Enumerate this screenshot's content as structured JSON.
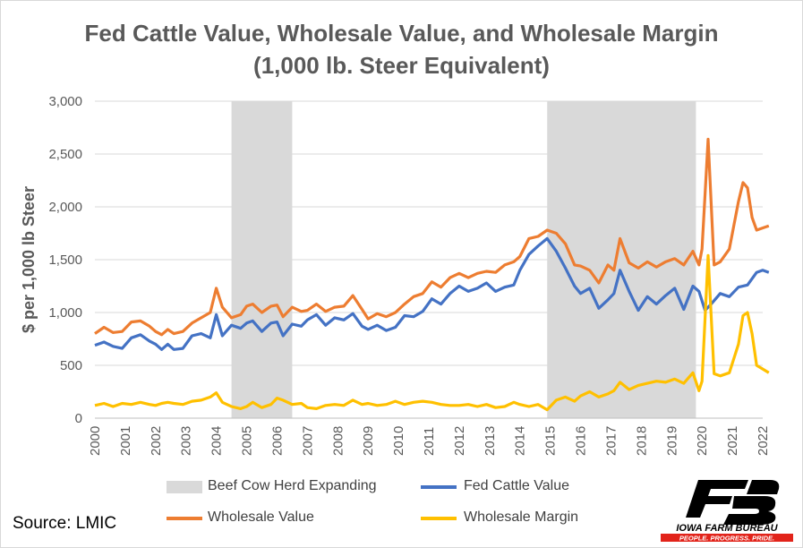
{
  "chart_data": {
    "type": "line",
    "title": "Fed Cattle Value, Wholesale Value, and Wholesale Margin",
    "subtitle": "(1,000 lb. Steer Equivalent)",
    "ylabel": "$ per 1,000 lb Steer",
    "xlabel": "",
    "ylim": [
      0,
      3000
    ],
    "xlim": [
      2000,
      2022
    ],
    "y_ticks": [
      "0",
      "500",
      "1,000",
      "1,500",
      "2,000",
      "2,500",
      "3,000"
    ],
    "x_ticks": [
      "2000",
      "2001",
      "2002",
      "2003",
      "2004",
      "2005",
      "2006",
      "2007",
      "2008",
      "2009",
      "2010",
      "2011",
      "2012",
      "2013",
      "2014",
      "2015",
      "2016",
      "2017",
      "2018",
      "2019",
      "2020",
      "2021",
      "2022"
    ],
    "grid": true,
    "legend_placement": "bottom",
    "shaded_periods": {
      "name": "Beef Cow Herd Expanding",
      "color": "#d9d9d9",
      "ranges": [
        [
          2004.5,
          2006.5
        ],
        [
          2014.9,
          2019.8
        ]
      ]
    },
    "series": [
      {
        "name": "Fed Cattle Value",
        "color": "#4472c4",
        "points": [
          [
            2000.0,
            690
          ],
          [
            2000.3,
            720
          ],
          [
            2000.6,
            680
          ],
          [
            2000.9,
            660
          ],
          [
            2001.2,
            760
          ],
          [
            2001.5,
            790
          ],
          [
            2001.8,
            730
          ],
          [
            2002.0,
            700
          ],
          [
            2002.2,
            650
          ],
          [
            2002.4,
            700
          ],
          [
            2002.6,
            650
          ],
          [
            2002.9,
            660
          ],
          [
            2003.2,
            780
          ],
          [
            2003.5,
            800
          ],
          [
            2003.8,
            760
          ],
          [
            2004.0,
            980
          ],
          [
            2004.2,
            780
          ],
          [
            2004.5,
            880
          ],
          [
            2004.8,
            850
          ],
          [
            2005.0,
            900
          ],
          [
            2005.2,
            920
          ],
          [
            2005.5,
            820
          ],
          [
            2005.8,
            900
          ],
          [
            2006.0,
            910
          ],
          [
            2006.2,
            780
          ],
          [
            2006.5,
            890
          ],
          [
            2006.8,
            870
          ],
          [
            2007.0,
            930
          ],
          [
            2007.3,
            980
          ],
          [
            2007.6,
            880
          ],
          [
            2007.9,
            950
          ],
          [
            2008.2,
            930
          ],
          [
            2008.5,
            990
          ],
          [
            2008.8,
            870
          ],
          [
            2009.0,
            840
          ],
          [
            2009.3,
            880
          ],
          [
            2009.6,
            830
          ],
          [
            2009.9,
            860
          ],
          [
            2010.2,
            970
          ],
          [
            2010.5,
            960
          ],
          [
            2010.8,
            1010
          ],
          [
            2011.1,
            1130
          ],
          [
            2011.4,
            1080
          ],
          [
            2011.7,
            1180
          ],
          [
            2012.0,
            1250
          ],
          [
            2012.3,
            1200
          ],
          [
            2012.6,
            1230
          ],
          [
            2012.9,
            1280
          ],
          [
            2013.2,
            1200
          ],
          [
            2013.5,
            1240
          ],
          [
            2013.8,
            1260
          ],
          [
            2014.0,
            1400
          ],
          [
            2014.3,
            1550
          ],
          [
            2014.6,
            1630
          ],
          [
            2014.9,
            1700
          ],
          [
            2015.2,
            1580
          ],
          [
            2015.5,
            1420
          ],
          [
            2015.8,
            1250
          ],
          [
            2016.0,
            1180
          ],
          [
            2016.3,
            1230
          ],
          [
            2016.6,
            1040
          ],
          [
            2016.9,
            1120
          ],
          [
            2017.1,
            1180
          ],
          [
            2017.3,
            1400
          ],
          [
            2017.6,
            1200
          ],
          [
            2017.9,
            1020
          ],
          [
            2018.2,
            1150
          ],
          [
            2018.5,
            1080
          ],
          [
            2018.8,
            1160
          ],
          [
            2019.1,
            1230
          ],
          [
            2019.4,
            1030
          ],
          [
            2019.7,
            1250
          ],
          [
            2019.9,
            1200
          ],
          [
            2020.1,
            1020
          ],
          [
            2020.3,
            1080
          ],
          [
            2020.6,
            1180
          ],
          [
            2020.9,
            1150
          ],
          [
            2021.2,
            1240
          ],
          [
            2021.5,
            1260
          ],
          [
            2021.8,
            1380
          ],
          [
            2022.0,
            1400
          ],
          [
            2022.2,
            1380
          ]
        ]
      },
      {
        "name": "Wholesale Value",
        "color": "#ed7d31",
        "points": [
          [
            2000.0,
            800
          ],
          [
            2000.3,
            860
          ],
          [
            2000.6,
            810
          ],
          [
            2000.9,
            820
          ],
          [
            2001.2,
            910
          ],
          [
            2001.5,
            920
          ],
          [
            2001.8,
            870
          ],
          [
            2002.0,
            820
          ],
          [
            2002.2,
            790
          ],
          [
            2002.4,
            840
          ],
          [
            2002.6,
            800
          ],
          [
            2002.9,
            820
          ],
          [
            2003.2,
            900
          ],
          [
            2003.5,
            950
          ],
          [
            2003.8,
            1000
          ],
          [
            2004.0,
            1230
          ],
          [
            2004.2,
            1050
          ],
          [
            2004.5,
            950
          ],
          [
            2004.8,
            980
          ],
          [
            2005.0,
            1060
          ],
          [
            2005.2,
            1080
          ],
          [
            2005.5,
            1000
          ],
          [
            2005.8,
            1060
          ],
          [
            2006.0,
            1070
          ],
          [
            2006.2,
            960
          ],
          [
            2006.5,
            1050
          ],
          [
            2006.8,
            1010
          ],
          [
            2007.0,
            1020
          ],
          [
            2007.3,
            1080
          ],
          [
            2007.6,
            1010
          ],
          [
            2007.9,
            1050
          ],
          [
            2008.2,
            1060
          ],
          [
            2008.5,
            1160
          ],
          [
            2008.8,
            1030
          ],
          [
            2009.0,
            940
          ],
          [
            2009.3,
            990
          ],
          [
            2009.6,
            960
          ],
          [
            2009.9,
            1000
          ],
          [
            2010.2,
            1080
          ],
          [
            2010.5,
            1150
          ],
          [
            2010.8,
            1180
          ],
          [
            2011.1,
            1290
          ],
          [
            2011.4,
            1240
          ],
          [
            2011.7,
            1330
          ],
          [
            2012.0,
            1370
          ],
          [
            2012.3,
            1330
          ],
          [
            2012.6,
            1370
          ],
          [
            2012.9,
            1390
          ],
          [
            2013.2,
            1380
          ],
          [
            2013.5,
            1450
          ],
          [
            2013.8,
            1480
          ],
          [
            2014.0,
            1530
          ],
          [
            2014.3,
            1700
          ],
          [
            2014.6,
            1720
          ],
          [
            2014.9,
            1780
          ],
          [
            2015.2,
            1750
          ],
          [
            2015.5,
            1650
          ],
          [
            2015.8,
            1450
          ],
          [
            2016.0,
            1440
          ],
          [
            2016.3,
            1400
          ],
          [
            2016.6,
            1280
          ],
          [
            2016.9,
            1450
          ],
          [
            2017.1,
            1400
          ],
          [
            2017.3,
            1700
          ],
          [
            2017.6,
            1470
          ],
          [
            2017.9,
            1420
          ],
          [
            2018.2,
            1480
          ],
          [
            2018.5,
            1430
          ],
          [
            2018.8,
            1480
          ],
          [
            2019.1,
            1510
          ],
          [
            2019.4,
            1450
          ],
          [
            2019.7,
            1580
          ],
          [
            2019.9,
            1450
          ],
          [
            2020.0,
            1600
          ],
          [
            2020.2,
            2640
          ],
          [
            2020.4,
            1450
          ],
          [
            2020.6,
            1480
          ],
          [
            2020.9,
            1600
          ],
          [
            2021.2,
            2050
          ],
          [
            2021.35,
            2230
          ],
          [
            2021.5,
            2180
          ],
          [
            2021.65,
            1900
          ],
          [
            2021.8,
            1780
          ],
          [
            2022.2,
            1820
          ]
        ]
      },
      {
        "name": "Wholesale Margin",
        "color": "#ffc000",
        "points": [
          [
            2000.0,
            120
          ],
          [
            2000.3,
            140
          ],
          [
            2000.6,
            110
          ],
          [
            2000.9,
            140
          ],
          [
            2001.2,
            130
          ],
          [
            2001.5,
            150
          ],
          [
            2001.8,
            130
          ],
          [
            2002.0,
            120
          ],
          [
            2002.2,
            140
          ],
          [
            2002.4,
            150
          ],
          [
            2002.6,
            140
          ],
          [
            2002.9,
            130
          ],
          [
            2003.2,
            160
          ],
          [
            2003.5,
            170
          ],
          [
            2003.8,
            200
          ],
          [
            2004.0,
            240
          ],
          [
            2004.2,
            150
          ],
          [
            2004.5,
            110
          ],
          [
            2004.8,
            90
          ],
          [
            2005.0,
            110
          ],
          [
            2005.2,
            150
          ],
          [
            2005.5,
            100
          ],
          [
            2005.8,
            130
          ],
          [
            2006.0,
            190
          ],
          [
            2006.2,
            170
          ],
          [
            2006.5,
            130
          ],
          [
            2006.8,
            140
          ],
          [
            2007.0,
            100
          ],
          [
            2007.3,
            90
          ],
          [
            2007.6,
            120
          ],
          [
            2007.9,
            130
          ],
          [
            2008.2,
            120
          ],
          [
            2008.5,
            170
          ],
          [
            2008.8,
            130
          ],
          [
            2009.0,
            140
          ],
          [
            2009.3,
            120
          ],
          [
            2009.6,
            130
          ],
          [
            2009.9,
            160
          ],
          [
            2010.2,
            130
          ],
          [
            2010.5,
            150
          ],
          [
            2010.8,
            160
          ],
          [
            2011.1,
            150
          ],
          [
            2011.4,
            130
          ],
          [
            2011.7,
            120
          ],
          [
            2012.0,
            120
          ],
          [
            2012.3,
            130
          ],
          [
            2012.6,
            110
          ],
          [
            2012.9,
            130
          ],
          [
            2013.2,
            100
          ],
          [
            2013.5,
            110
          ],
          [
            2013.8,
            150
          ],
          [
            2014.0,
            130
          ],
          [
            2014.3,
            110
          ],
          [
            2014.6,
            130
          ],
          [
            2014.9,
            80
          ],
          [
            2015.2,
            170
          ],
          [
            2015.5,
            200
          ],
          [
            2015.8,
            160
          ],
          [
            2016.0,
            210
          ],
          [
            2016.3,
            250
          ],
          [
            2016.6,
            200
          ],
          [
            2016.9,
            230
          ],
          [
            2017.1,
            260
          ],
          [
            2017.3,
            340
          ],
          [
            2017.6,
            270
          ],
          [
            2017.9,
            310
          ],
          [
            2018.2,
            330
          ],
          [
            2018.5,
            350
          ],
          [
            2018.8,
            340
          ],
          [
            2019.1,
            370
          ],
          [
            2019.4,
            330
          ],
          [
            2019.7,
            430
          ],
          [
            2019.9,
            260
          ],
          [
            2020.0,
            350
          ],
          [
            2020.2,
            1540
          ],
          [
            2020.4,
            420
          ],
          [
            2020.6,
            400
          ],
          [
            2020.9,
            430
          ],
          [
            2021.2,
            700
          ],
          [
            2021.35,
            970
          ],
          [
            2021.5,
            1000
          ],
          [
            2021.65,
            800
          ],
          [
            2021.8,
            500
          ],
          [
            2022.2,
            430
          ]
        ]
      }
    ]
  },
  "legend": {
    "shaded": "Beef Cow Herd Expanding",
    "fed_cattle": "Fed Cattle Value",
    "wholesale_value": "Wholesale Value",
    "wholesale_margin": "Wholesale Margin"
  },
  "source": "Source: LMIC",
  "logo": {
    "text": "IOWA FARM BUREAU",
    "tagline": "PEOPLE. PROGRESS. PRIDE.",
    "colors": {
      "mark": "#000000",
      "bar": "#e2231a"
    }
  }
}
